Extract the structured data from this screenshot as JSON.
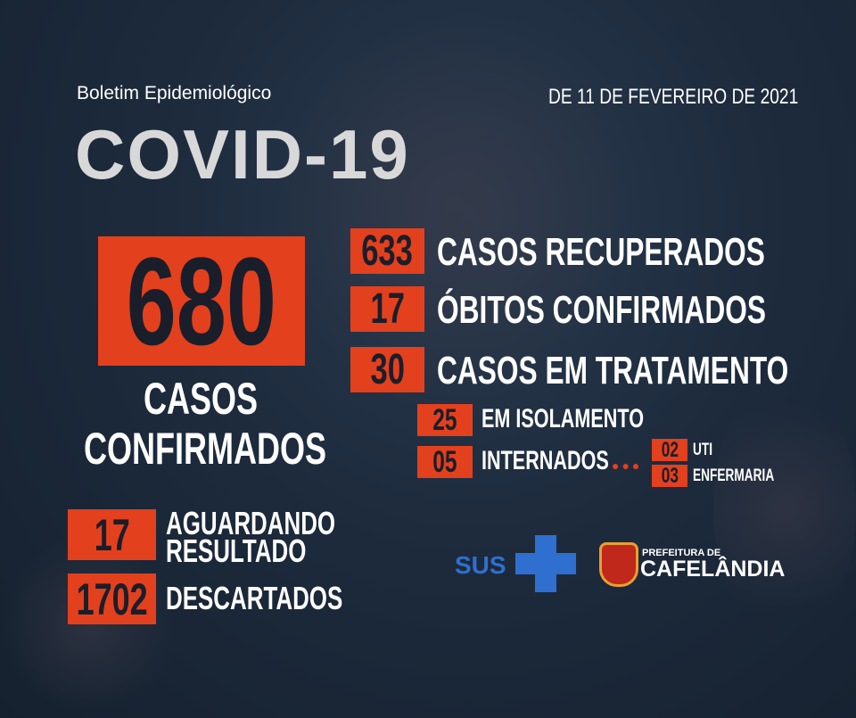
{
  "header": {
    "subtitle": "Boletim Epidemiológico",
    "title": "COVID-19",
    "date": "DE 11 DE FEVEREIRO DE 2021"
  },
  "confirmed": {
    "value": "680",
    "label_line1": "CASOS",
    "label_line2": "CONFIRMADOS"
  },
  "stats": [
    {
      "value": "633",
      "label": "CASOS RECUPERADOS"
    },
    {
      "value": "17",
      "label": "ÓBITOS CONFIRMADOS"
    },
    {
      "value": "30",
      "label": "CASOS EM TRATAMENTO"
    }
  ],
  "treatment": [
    {
      "value": "25",
      "label": "EM ISOLAMENTO"
    },
    {
      "value": "05",
      "label": "INTERNADOS"
    }
  ],
  "hospitalized": [
    {
      "value": "02",
      "label": "UTI"
    },
    {
      "value": "03",
      "label": "ENFERMARIA"
    }
  ],
  "pending": {
    "value": "17",
    "label_line1": "AGUARDANDO",
    "label_line2": "RESULTADO"
  },
  "discarded": {
    "value": "1702",
    "label": "DESCARTADOS"
  },
  "logos": {
    "sus": "SUS",
    "prefeitura_small": "PREFEITURA DE",
    "prefeitura_city": "CAFELÂNDIA"
  },
  "colors": {
    "accent": "#e3401e",
    "background": "#1d2b3d",
    "sus_blue": "#2f6fd0"
  }
}
